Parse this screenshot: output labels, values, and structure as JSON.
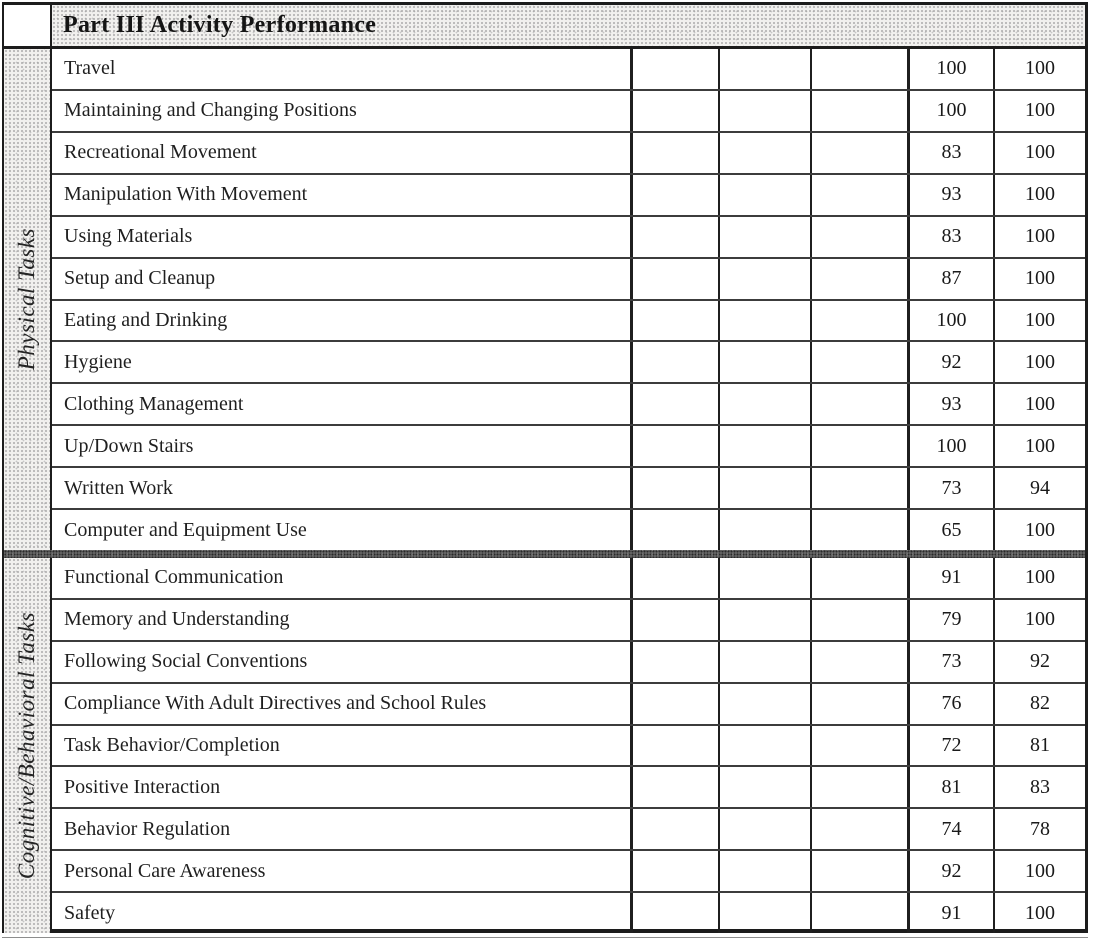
{
  "document": {
    "title": "Part III Activity Performance"
  },
  "table": {
    "groups": [
      {
        "label": "Physical Tasks",
        "rows": [
          {
            "task": "Travel",
            "score1": "100",
            "score2": "100"
          },
          {
            "task": "Maintaining and Changing Positions",
            "score1": "100",
            "score2": "100"
          },
          {
            "task": "Recreational Movement",
            "score1": "83",
            "score2": "100"
          },
          {
            "task": "Manipulation With Movement",
            "score1": "93",
            "score2": "100"
          },
          {
            "task": "Using Materials",
            "score1": "83",
            "score2": "100"
          },
          {
            "task": "Setup and Cleanup",
            "score1": "87",
            "score2": "100"
          },
          {
            "task": "Eating and Drinking",
            "score1": "100",
            "score2": "100"
          },
          {
            "task": "Hygiene",
            "score1": "92",
            "score2": "100"
          },
          {
            "task": "Clothing Management",
            "score1": "93",
            "score2": "100"
          },
          {
            "task": "Up/Down Stairs",
            "score1": "100",
            "score2": "100"
          },
          {
            "task": "Written Work",
            "score1": "73",
            "score2": "94"
          },
          {
            "task": "Computer and Equipment Use",
            "score1": "65",
            "score2": "100"
          }
        ]
      },
      {
        "label": "Cognitive/Behavioral Tasks",
        "rows": [
          {
            "task": "Functional Communication",
            "score1": "91",
            "score2": "100"
          },
          {
            "task": "Memory and Understanding",
            "score1": "79",
            "score2": "100"
          },
          {
            "task": "Following Social Conventions",
            "score1": "73",
            "score2": "92"
          },
          {
            "task": "Compliance With Adult Directives and School Rules",
            "score1": "76",
            "score2": "82"
          },
          {
            "task": "Task Behavior/Completion",
            "score1": "72",
            "score2": "81"
          },
          {
            "task": "Positive Interaction",
            "score1": "81",
            "score2": "83"
          },
          {
            "task": "Behavior Regulation",
            "score1": "74",
            "score2": "78"
          },
          {
            "task": "Personal Care Awareness",
            "score1": "92",
            "score2": "100"
          },
          {
            "task": "Safety",
            "score1": "91",
            "score2": "100"
          }
        ]
      }
    ]
  }
}
